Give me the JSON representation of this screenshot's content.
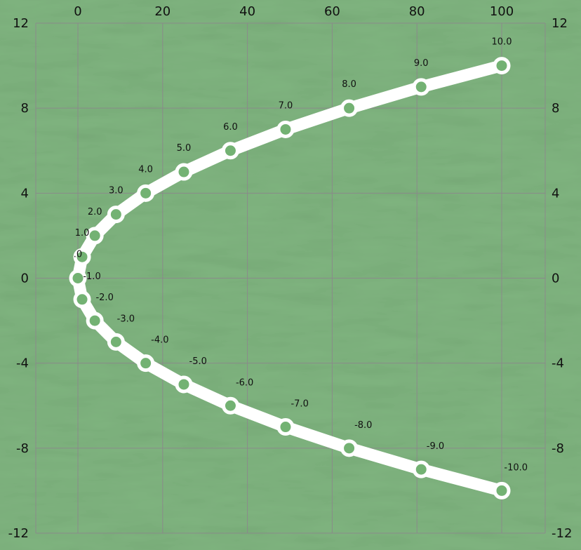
{
  "chart_data": {
    "type": "line",
    "title": "",
    "xlabel": "",
    "ylabel": "",
    "x_axis_position": "top",
    "y_axes": "left-and-right",
    "xlim": [
      0,
      110
    ],
    "ylim": [
      -12,
      12
    ],
    "x_ticks": [
      "0",
      "20",
      "40",
      "60",
      "80",
      "100"
    ],
    "x_tick_values": [
      0,
      20,
      40,
      60,
      80,
      100
    ],
    "y_ticks": [
      "12",
      "8",
      "4",
      "0",
      "-4",
      "-8",
      "-12"
    ],
    "y_tick_values": [
      12,
      8,
      4,
      0,
      -4,
      -8,
      -12
    ],
    "grid": true,
    "colors": {
      "background": "#7fb47f",
      "line": "#ffffff",
      "grid": "#8a8a8a",
      "text": "#111111"
    },
    "series": [
      {
        "x": [
          100,
          81,
          64,
          49,
          36,
          25,
          16,
          9,
          4,
          1,
          0,
          1,
          4,
          9,
          16,
          25,
          36,
          49,
          64,
          81,
          100
        ],
        "y": [
          10,
          9,
          8,
          7,
          6,
          5,
          4,
          3,
          2,
          1,
          0,
          -1,
          -2,
          -3,
          -4,
          -5,
          -6,
          -7,
          -8,
          -9,
          -10
        ],
        "labels": [
          "10.0",
          "9.0",
          "8.0",
          "7.0",
          "6.0",
          "5.0",
          "4.0",
          "3.0",
          "2.0",
          "1.0",
          ".0",
          "-1.0",
          "-2.0",
          "-3.0",
          "-4.0",
          "-5.0",
          "-6.0",
          "-7.0",
          "-8.0",
          "-9.0",
          "-10.0"
        ]
      }
    ]
  }
}
